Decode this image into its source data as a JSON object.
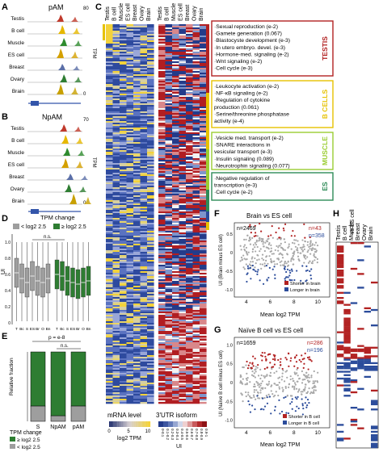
{
  "panels": {
    "A": {
      "letter": "A",
      "title": "pAM",
      "ylabel": "TPM",
      "ymax": "80",
      "ymin": "0",
      "tracks": [
        "Testis",
        "B cell",
        "Muscle",
        "ES cell",
        "Breast",
        "Ovary",
        "Brain"
      ],
      "colors": [
        "#c0392b",
        "#e6b800",
        "#2e8b2e",
        "#d4a000",
        "#5b6fa8",
        "#2e7d32",
        "#c8a000"
      ]
    },
    "B": {
      "letter": "B",
      "title": "NpAM",
      "ylabel": "TPM",
      "ymax": "70",
      "ymin": "0",
      "tracks": [
        "Testis",
        "B cell",
        "Muscle",
        "ES cell",
        "Breast",
        "Ovary",
        "Brain"
      ],
      "colors": [
        "#c0392b",
        "#e6b800",
        "#2e8b2e",
        "#d4a000",
        "#5b6fa8",
        "#2e7d32",
        "#c8a000"
      ]
    },
    "C": {
      "letter": "C",
      "columns": [
        "Testis",
        "B cell",
        "Muscle",
        "ES cell",
        "Breast",
        "Ovary",
        "Brain"
      ],
      "legend_mrna": "mRNA level",
      "legend_mrna_unit": "log2 TPM",
      "legend_mrna_ticks": [
        "0",
        "5",
        "10"
      ],
      "legend_utr": "3'UTR isoform",
      "legend_utr_unit": "UI",
      "legend_utr_ticks": [
        "0-0.1",
        "0.1-0.2",
        "0.2-0.3",
        "0.3-0.4",
        "0.4-0.5",
        "0.5-0.6",
        "0.6-0.7",
        "0.7-0.8",
        "0.8-0.9",
        "0.9-1"
      ]
    },
    "D": {
      "letter": "D",
      "title": "TPM change",
      "legend": [
        "< log2 2.5",
        "≥ log2 2.5"
      ],
      "ylabel": "UI",
      "yticks": [
        "0",
        "0.2",
        "0.4",
        "0.6",
        "0.8",
        "1.0"
      ],
      "ns": "n.s.",
      "xticks": [
        "T",
        "Bc",
        "S",
        "ES",
        "Br",
        "O",
        "Bn",
        "T",
        "Bc",
        "S",
        "ES",
        "Br",
        "O",
        "Bn"
      ],
      "chart_data": {
        "type": "box",
        "groups": [
          {
            "name": "< log2 2.5",
            "medians": [
              0.62,
              0.55,
              0.5,
              0.58,
              0.52,
              0.5,
              0.55
            ]
          },
          {
            "name": "≥ log2 2.5",
            "medians": [
              0.6,
              0.58,
              0.52,
              0.5,
              0.48,
              0.5,
              0.52
            ]
          }
        ]
      }
    },
    "E": {
      "letter": "E",
      "ylabel": "Relative fraction",
      "pval": "p = e-8",
      "ns": "n.s.",
      "categories": [
        "S",
        "NpAM",
        "pAM"
      ],
      "xlabel": "TPM change",
      "legend": [
        "≥ log2 2.5",
        "< log2 2.5"
      ],
      "yticks": [
        "0",
        "0.2",
        "0.4",
        "0.6",
        "0.8",
        "1.0"
      ],
      "chart_data": {
        "type": "bar",
        "stacked": true,
        "categories": [
          "S",
          "NpAM",
          "pAM"
        ],
        "series": [
          {
            "name": "< log2 2.5",
            "values": [
              0.22,
              0.08,
              0.22
            ]
          },
          {
            "name": "≥ log2 2.5",
            "values": [
              0.78,
              0.92,
              0.78
            ]
          }
        ]
      }
    },
    "F": {
      "letter": "F",
      "title": "Brain vs ES cell",
      "n_total": "n=2469",
      "n_red": "n=43",
      "n_blue": "n=358",
      "ylabel": "UI (Brain minus ES cell)",
      "xticks": [
        "4",
        "6",
        "8",
        "10"
      ],
      "yticks": [
        "-1.0",
        "-0.5",
        "0",
        "0.5"
      ],
      "legend": [
        "Shorter in brain",
        "Longer in brain"
      ]
    },
    "G": {
      "letter": "G",
      "title": "Naïve B cell vs ES cell",
      "n_total": "n=1659",
      "n_red": "n=286",
      "n_blue": "n=196",
      "ylabel": "UI (Naïve B cell minus ES cell)",
      "xlabel": "Mean log2 TPM",
      "xticks": [
        "4",
        "6",
        "8",
        "10"
      ],
      "yticks": [
        "-1.0",
        "-0.5",
        "0",
        "0.5",
        "1.0"
      ],
      "legend": [
        "Shorter in B cell",
        "Longer in B cell"
      ]
    },
    "H": {
      "letter": "H",
      "columns": [
        "Testis",
        "B cell",
        "Muscle",
        "Breast",
        "Ovary",
        "Brain"
      ],
      "header": "vs ES cell"
    }
  },
  "go_boxes": [
    {
      "tissue": "TESTIS",
      "color": "#b22222",
      "terms": [
        "·Sexual reproduction (e-2)",
        "·Gamete generation (0.067)",
        "·Blastocyste development (e-3)",
        "·In utero embryo. devel. (e-3)",
        "·Hormone-med. signaling (e-2)",
        "·Wnt signaling (e-2)",
        "·Cell cycle (e-3)"
      ]
    },
    {
      "tissue": "B CELLS",
      "color": "#e6c200",
      "terms": [
        "·Leukocyte activation (e-2)",
        "·NF-κB signaling (e-2)",
        "·Regulation of cytokine",
        "production (0.061)",
        "·Serine/threonine phosphatase",
        "activity (e-4)"
      ]
    },
    {
      "tissue": "MUSCLE",
      "color": "#9acd32",
      "terms": [
        "·Vesicle med. transport (e-2)",
        "·SNARE interactions in",
        "vesicular transport (e-3)",
        "·Insulin signaling (0.089)",
        "·Neurotrophin signaling (0.077)"
      ]
    },
    {
      "tissue": "ES",
      "color": "#2e8b57",
      "terms": [
        "·Negative regulation of",
        "transcription (e-3)",
        "·Cell cycle (e-2)"
      ]
    }
  ],
  "x_tick_labels": {
    "mean": "Mean log2 TPM"
  },
  "colors": {
    "red": "#b22222",
    "blue": "#2b4c9b",
    "yellow": "#e9c82a",
    "gray": "#9e9e9e",
    "green": "#2e7d32"
  }
}
